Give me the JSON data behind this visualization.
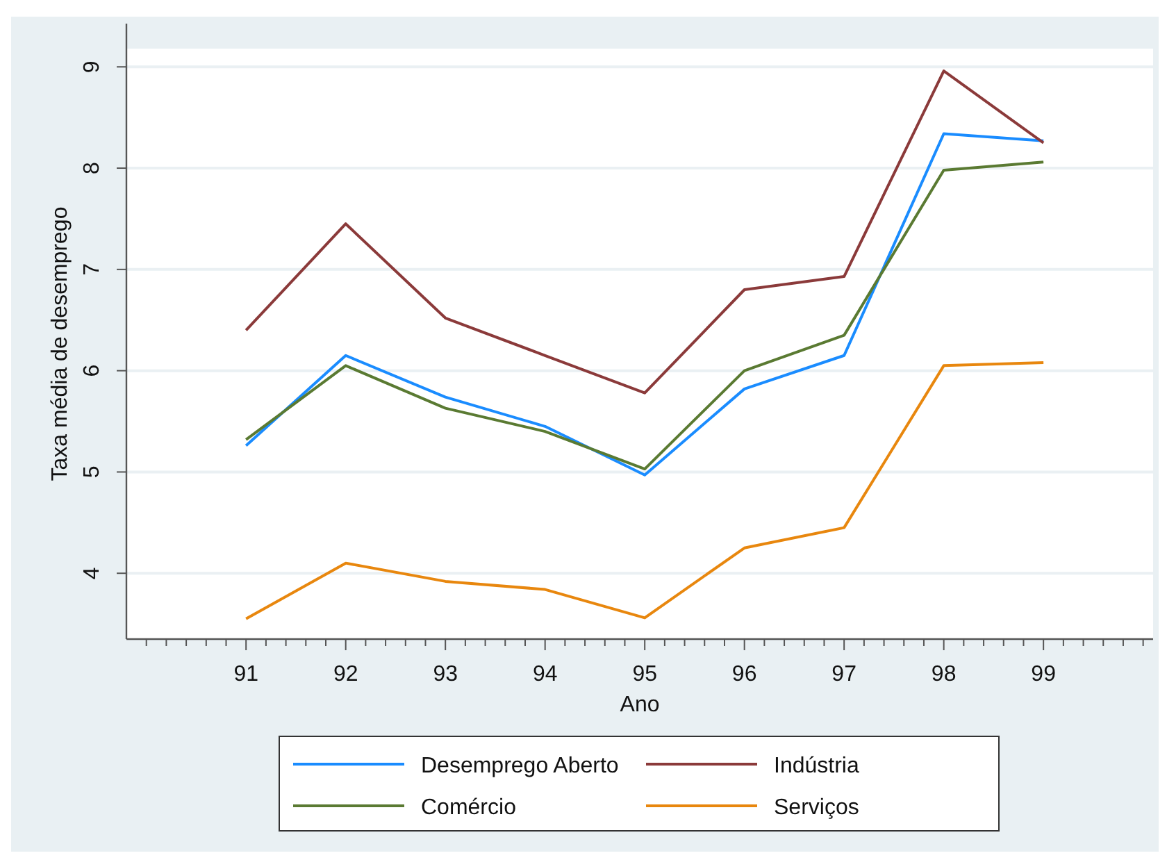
{
  "chart_data": {
    "type": "line",
    "xlabel": "Ano",
    "ylabel": "Taxa média de desemprego",
    "x": [
      91,
      92,
      93,
      94,
      95,
      96,
      97,
      98,
      99
    ],
    "xlim": [
      89.8,
      100.1
    ],
    "xticks": [
      {
        "value": 90,
        "label": null
      },
      {
        "value": 90.2,
        "label": null
      },
      {
        "value": 90.4,
        "label": null
      },
      {
        "value": 90.6,
        "label": null
      },
      {
        "value": 90.8,
        "label": null
      },
      91,
      {
        "value": 91.2,
        "label": null
      },
      {
        "value": 91.4,
        "label": null
      },
      {
        "value": 91.6,
        "label": null
      },
      {
        "value": 91.8,
        "label": null
      },
      92,
      {
        "value": 92.2,
        "label": null
      },
      {
        "value": 92.4,
        "label": null
      },
      {
        "value": 92.6,
        "label": null
      },
      {
        "value": 92.8,
        "label": null
      },
      93,
      {
        "value": 93.2,
        "label": null
      },
      {
        "value": 93.4,
        "label": null
      },
      {
        "value": 93.6,
        "label": null
      },
      {
        "value": 93.8,
        "label": null
      },
      94,
      {
        "value": 94.2,
        "label": null
      },
      {
        "value": 94.4,
        "label": null
      },
      {
        "value": 94.6,
        "label": null
      },
      {
        "value": 94.8,
        "label": null
      },
      95,
      {
        "value": 95.2,
        "label": null
      },
      {
        "value": 95.4,
        "label": null
      },
      {
        "value": 95.6,
        "label": null
      },
      {
        "value": 95.8,
        "label": null
      },
      96,
      {
        "value": 96.2,
        "label": null
      },
      {
        "value": 96.4,
        "label": null
      },
      {
        "value": 96.6,
        "label": null
      },
      {
        "value": 96.8,
        "label": null
      },
      97,
      {
        "value": 97.2,
        "label": null
      },
      {
        "value": 97.4,
        "label": null
      },
      {
        "value": 97.6,
        "label": null
      },
      {
        "value": 97.8,
        "label": null
      },
      98,
      {
        "value": 98.2,
        "label": null
      },
      {
        "value": 98.4,
        "label": null
      },
      {
        "value": 98.6,
        "label": null
      },
      {
        "value": 98.8,
        "label": null
      },
      99,
      {
        "value": 99.2,
        "label": null
      },
      {
        "value": 99.4,
        "label": null
      },
      {
        "value": 99.6,
        "label": null
      },
      {
        "value": 99.8,
        "label": null
      },
      {
        "value": 100,
        "label": null
      }
    ],
    "ylim": [
      3.35,
      9.18
    ],
    "yticks": [
      4,
      5,
      6,
      7,
      8,
      9
    ],
    "grid": "y",
    "legend": "bottom",
    "marker": "none",
    "line_style": "solid",
    "series": [
      {
        "name": "Desemprego Aberto",
        "color": "#1a8cff",
        "values": [
          5.26,
          6.15,
          5.74,
          5.45,
          4.97,
          5.82,
          6.15,
          8.34,
          8.27
        ]
      },
      {
        "name": "Indústria",
        "color": "#8b3a3a",
        "values": [
          6.4,
          7.45,
          6.52,
          6.15,
          5.78,
          6.8,
          6.93,
          8.96,
          8.25
        ]
      },
      {
        "name": "Comércio",
        "color": "#5a7a32",
        "values": [
          5.32,
          6.05,
          5.63,
          5.4,
          5.03,
          6.0,
          6.35,
          7.98,
          8.06
        ]
      },
      {
        "name": "Serviços",
        "color": "#e8870e",
        "values": [
          3.55,
          4.1,
          3.92,
          3.84,
          3.56,
          4.25,
          4.45,
          6.05,
          6.08
        ]
      }
    ]
  }
}
